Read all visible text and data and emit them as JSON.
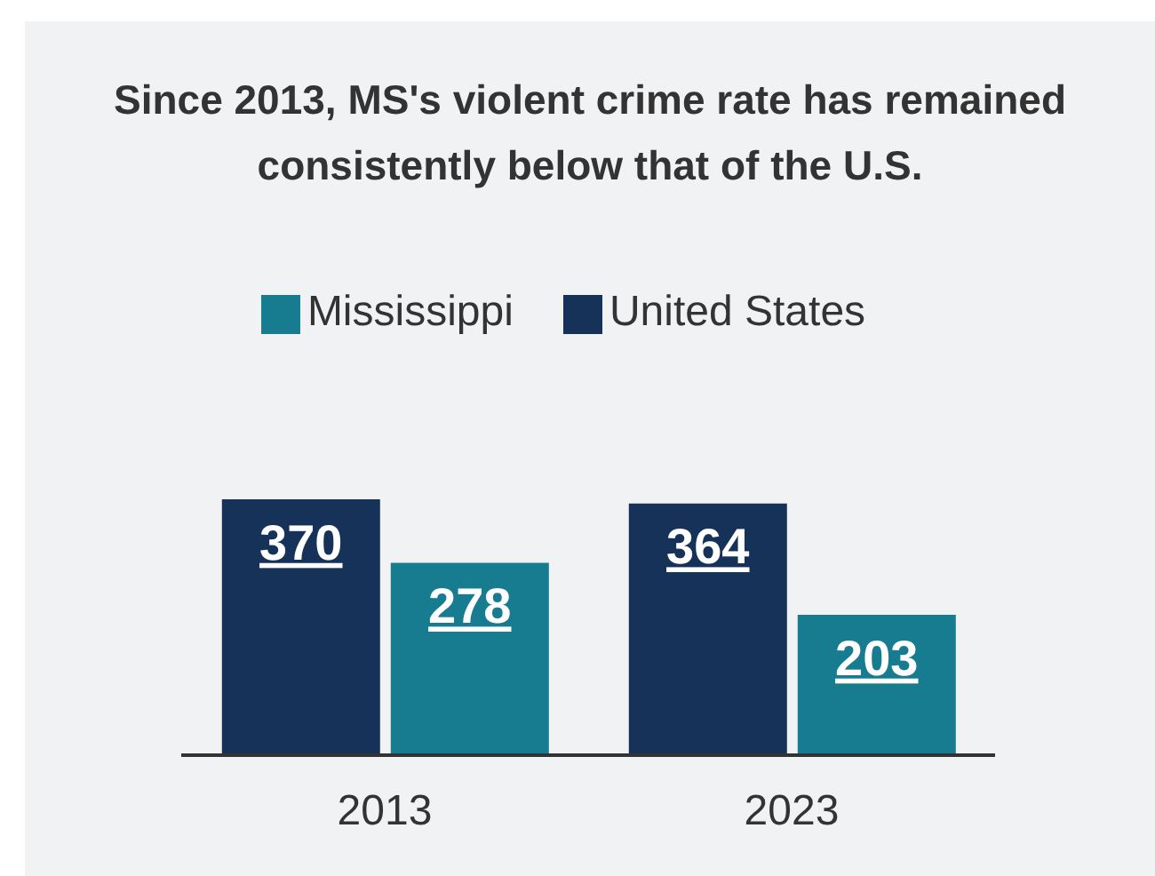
{
  "chart_data": {
    "type": "bar",
    "title": "Since 2013, MS's violent crime rate has remained consistently below that of the U.S.",
    "categories": [
      "2013",
      "2023"
    ],
    "series": [
      {
        "name": "United States",
        "color": "#173259",
        "values": [
          370,
          364
        ]
      },
      {
        "name": "Mississippi",
        "color": "#177c8f",
        "values": [
          278,
          203
        ]
      }
    ],
    "data_labels": true,
    "legend": "top",
    "grid": false
  }
}
